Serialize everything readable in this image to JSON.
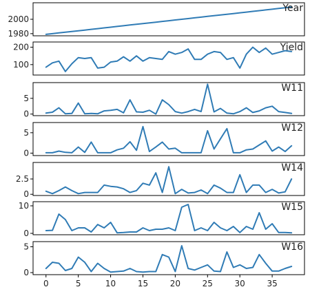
{
  "chart_data": {
    "type": "line",
    "layout": "stacked-subplots",
    "shared_x": true,
    "line_color": "#2f7bb5",
    "x": [
      0,
      1,
      2,
      3,
      4,
      5,
      6,
      7,
      8,
      9,
      10,
      11,
      12,
      13,
      14,
      15,
      16,
      17,
      18,
      19,
      20,
      21,
      22,
      23,
      24,
      25,
      26,
      27,
      28,
      29,
      30,
      31,
      32,
      33,
      34,
      35,
      36,
      37,
      38
    ],
    "x_ticks": [
      0,
      5,
      10,
      15,
      20,
      25,
      30,
      35
    ],
    "xlim": [
      -2,
      40
    ],
    "panels": [
      {
        "title": "Year",
        "ylim": [
          1977,
          2023
        ],
        "y_ticks": [
          1980,
          2000
        ],
        "values": [
          1979,
          1980,
          1981,
          1982,
          1983,
          1984,
          1985,
          1986,
          1987,
          1988,
          1989,
          1990,
          1991,
          1992,
          1993,
          1994,
          1995,
          1996,
          1997,
          1998,
          1999,
          2000,
          2001,
          2002,
          2003,
          2004,
          2005,
          2006,
          2007,
          2008,
          2009,
          2010,
          2011,
          2012,
          2013,
          2014,
          2015,
          2016,
          2017
        ]
      },
      {
        "title": "Yield",
        "ylim": [
          40,
          230
        ],
        "y_ticks": [
          100,
          200
        ],
        "values": [
          85,
          110,
          120,
          60,
          105,
          140,
          135,
          140,
          80,
          85,
          115,
          120,
          145,
          120,
          150,
          120,
          140,
          135,
          130,
          175,
          160,
          170,
          190,
          130,
          130,
          160,
          175,
          170,
          130,
          140,
          80,
          160,
          200,
          170,
          195,
          160,
          170,
          180,
          175
        ]
      },
      {
        "title": "W11",
        "ylim": [
          -0.5,
          10
        ],
        "y_ticks": [
          0,
          5
        ],
        "values": [
          0.3,
          0.6,
          2.0,
          0.1,
          0.2,
          3.5,
          0.1,
          0.2,
          0.1,
          1.0,
          1.2,
          1.5,
          0.4,
          4.5,
          0.7,
          0.6,
          1.2,
          0.0,
          4.5,
          3.0,
          0.8,
          0.3,
          0.8,
          1.5,
          0.8,
          9.5,
          0.7,
          1.8,
          0.3,
          0.1,
          0.8,
          2.0,
          0.5,
          1.0,
          2.0,
          2.5,
          0.8,
          0.5,
          0.2
        ]
      },
      {
        "title": "W12",
        "ylim": [
          -0.6,
          7.5
        ],
        "y_ticks": [
          0,
          5
        ],
        "values": [
          0.1,
          0.1,
          0.5,
          0.2,
          0.1,
          1.5,
          0.2,
          2.7,
          0.1,
          0.1,
          0.1,
          0.8,
          1.2,
          2.8,
          0.7,
          6.5,
          0.4,
          1.5,
          2.7,
          1.0,
          1.2,
          0.1,
          0.1,
          0.1,
          0.1,
          5.5,
          1.0,
          3.5,
          6.0,
          0.1,
          0.1,
          0.8,
          1.0,
          2.0,
          3.0,
          0.5,
          1.5,
          0.4,
          1.8
        ]
      },
      {
        "title": "W14",
        "ylim": [
          -0.2,
          5.2
        ],
        "y_ticks": [
          0,
          2.5
        ],
        "values": [
          0.5,
          0.1,
          0.6,
          1.2,
          0.6,
          0.1,
          0.3,
          0.3,
          0.3,
          1.5,
          1.3,
          1.2,
          0.9,
          0.3,
          0.6,
          1.8,
          1.5,
          3.5,
          0.3,
          4.5,
          0.1,
          0.8,
          0.2,
          0.3,
          0.7,
          0.1,
          1.5,
          1.0,
          0.3,
          0.3,
          3.2,
          0.3,
          1.5,
          1.5,
          0.3,
          0.8,
          0.2,
          0.4,
          2.5
        ]
      },
      {
        "title": "W15",
        "ylim": [
          -0.5,
          11.5
        ],
        "y_ticks": [
          0,
          10
        ],
        "values": [
          1.0,
          1.1,
          7.0,
          5.0,
          1.0,
          2.0,
          2.0,
          0.5,
          3.2,
          2.0,
          4.0,
          0.2,
          0.3,
          0.5,
          0.5,
          2.0,
          1.0,
          1.5,
          1.5,
          2.0,
          1.0,
          9.5,
          10.5,
          1.0,
          2.0,
          1.0,
          4.0,
          2.0,
          1.0,
          2.5,
          0.3,
          2.5,
          1.5,
          7.5,
          1.5,
          3.5,
          0.3,
          0.3,
          0.2
        ]
      },
      {
        "title": "W16",
        "ylim": [
          -0.4,
          6
        ],
        "y_ticks": [
          0,
          5
        ],
        "values": [
          0.8,
          2.0,
          1.8,
          0.4,
          0.8,
          3.0,
          2.0,
          0.2,
          1.8,
          0.8,
          0.1,
          0.2,
          0.3,
          0.8,
          0.2,
          0.1,
          0.2,
          0.2,
          3.5,
          3.0,
          0.2,
          5.2,
          0.8,
          0.5,
          1.0,
          1.5,
          0.3,
          0.2,
          4.0,
          1.0,
          1.5,
          0.8,
          1.0,
          3.5,
          1.8,
          0.3,
          0.3,
          0.8,
          1.2
        ]
      }
    ]
  }
}
